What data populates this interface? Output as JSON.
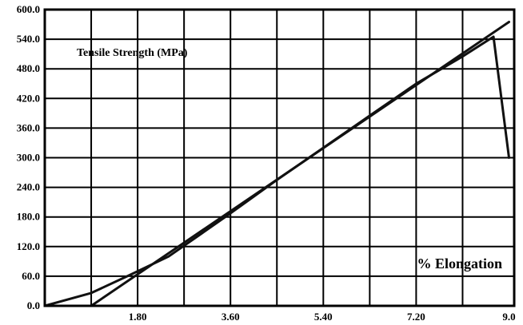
{
  "chart_data": {
    "type": "line",
    "title": "",
    "ylabel": "Tensile Strength (MPa)",
    "xlabel": "% Elongation",
    "xlim": [
      0,
      9.0
    ],
    "ylim": [
      0,
      600
    ],
    "x_ticks": [
      1.8,
      3.6,
      5.4,
      7.2,
      9.0
    ],
    "x_tick_labels": [
      "1.80",
      "3.60",
      "5.40",
      "7.20",
      "9.0"
    ],
    "y_ticks": [
      0,
      60,
      120,
      180,
      240,
      300,
      360,
      420,
      480,
      540,
      600
    ],
    "y_tick_labels": [
      "0.0",
      "60.0",
      "120.0",
      "180.0",
      "240.0",
      "300.0",
      "360.0",
      "420.0",
      "480.0",
      "540.0",
      "600.0"
    ],
    "grid": true,
    "series": [
      {
        "points": [
          [
            0.0,
            0
          ],
          [
            0.9,
            26
          ],
          [
            1.6,
            60
          ],
          [
            2.4,
            100
          ],
          [
            3.5,
            180
          ],
          [
            4.5,
            255
          ],
          [
            5.4,
            320
          ],
          [
            6.3,
            385
          ],
          [
            7.2,
            450
          ],
          [
            8.1,
            505
          ],
          [
            8.7,
            545
          ],
          [
            9.0,
            300
          ]
        ]
      },
      {
        "points": [
          [
            0.9,
            0
          ],
          [
            9.0,
            575
          ]
        ]
      }
    ]
  }
}
